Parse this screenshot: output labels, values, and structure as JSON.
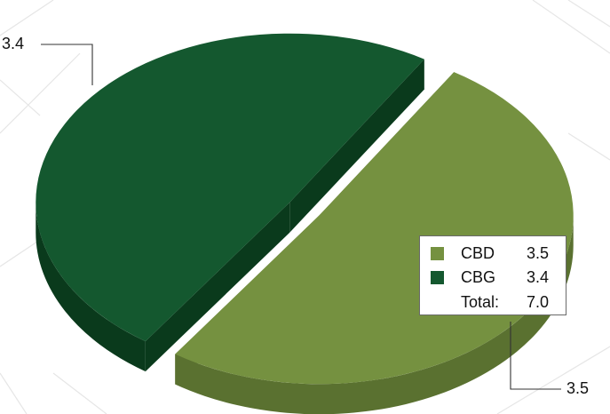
{
  "chart_data": {
    "type": "pie",
    "style": "3d-exploded",
    "slices": [
      {
        "name": "CBD",
        "value": 3.5,
        "color": "#759140",
        "side_color": "#5a7130"
      },
      {
        "name": "CBG",
        "value": 3.4,
        "color": "#14582f",
        "side_color": "#0a3a1c"
      }
    ],
    "data_labels": [
      "3.5",
      "3.4"
    ],
    "legend": {
      "placement": "right",
      "rows": [
        {
          "name": "CBD",
          "value": "3.5",
          "color": "#759140"
        },
        {
          "name": "CBG",
          "value": "3.4",
          "color": "#14582f"
        }
      ],
      "total_label": "Total:",
      "total_value": "7.0"
    }
  }
}
